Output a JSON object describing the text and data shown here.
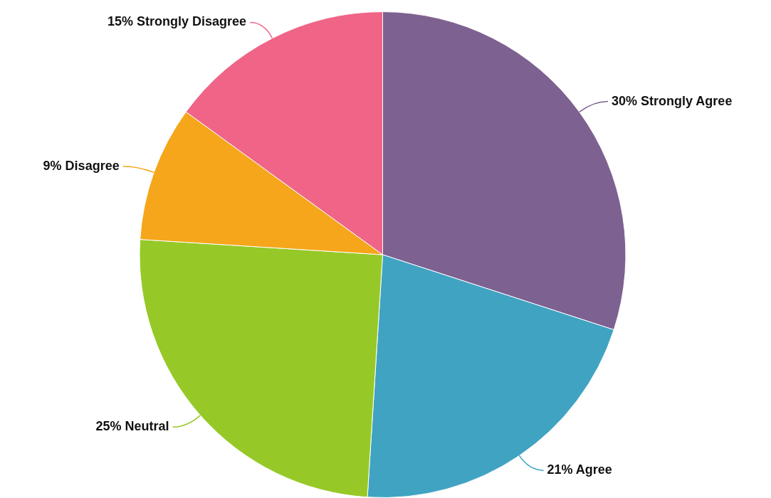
{
  "chart_data": {
    "type": "pie",
    "categories": [
      "Strongly Agree",
      "Agree",
      "Neutral",
      "Disagree",
      "Strongly Disagree"
    ],
    "values": [
      30,
      21,
      25,
      9,
      15
    ],
    "value_labels": [
      "30%",
      "21%",
      "25%",
      "9%",
      "15%"
    ],
    "colors": [
      "#7d6190",
      "#40a3c2",
      "#96c928",
      "#f5a61a",
      "#f06488"
    ],
    "legend": false
  }
}
